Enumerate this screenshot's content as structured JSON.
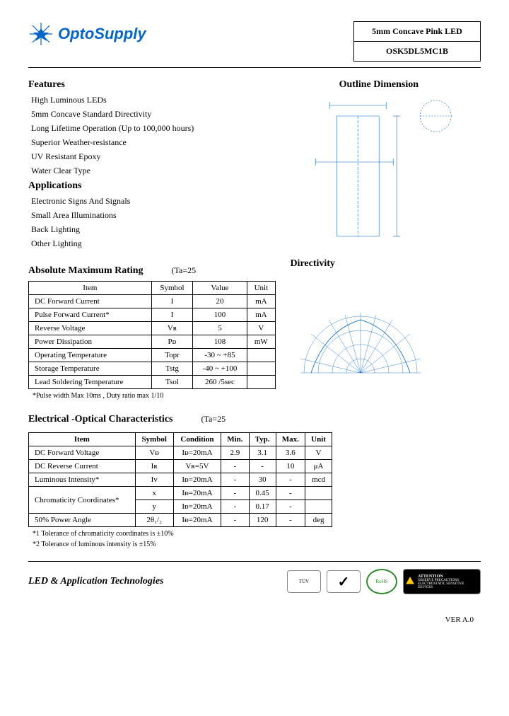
{
  "header": {
    "brand": "OptoSupply",
    "product_title": "5mm Concave Pink LED",
    "part_number": "OSK5DL5MC1B"
  },
  "features": {
    "title": "Features",
    "items": [
      "High Luminous LEDs",
      "5mm Concave Standard Directivity",
      "Long Lifetime Operation (Up to 100,000 hours)",
      "Superior Weather-resistance",
      "UV Resistant Epoxy",
      "Water Clear Type"
    ]
  },
  "applications": {
    "title": "Applications",
    "items": [
      "Electronic Signs And Signals",
      "Small Area Illuminations",
      "Back Lighting",
      "Other Lighting"
    ]
  },
  "outline": {
    "title": "Outline Dimension"
  },
  "abs_max": {
    "title": "Absolute Maximum Rating",
    "ta": "(Ta=25",
    "headers": [
      "Item",
      "Symbol",
      "Value",
      "Unit"
    ],
    "rows": [
      [
        "DC Forward Current",
        "I",
        "20",
        "mA"
      ],
      [
        "Pulse Forward Current*",
        "I",
        "100",
        "mA"
      ],
      [
        "Reverse Voltage",
        "Vʀ",
        "5",
        "V"
      ],
      [
        "Power Dissipation",
        "Pᴅ",
        "108",
        "mW"
      ],
      [
        "Operating Temperature",
        "Topr",
        "-30 ~ +85",
        ""
      ],
      [
        "Storage Temperature",
        "Tstg",
        "-40 ~ +100",
        ""
      ],
      [
        "Lead Soldering Temperature",
        "Tsol",
        "260   /5sec",
        ""
      ]
    ],
    "note": "*Pulse width Max 10ms , Duty ratio max 1/10"
  },
  "directivity": {
    "title": "Directivity"
  },
  "eo": {
    "title": "Electrical -Optical Characteristics",
    "ta": "(Ta=25",
    "headers": [
      "Item",
      "Symbol",
      "Condition",
      "Min.",
      "Typ.",
      "Max.",
      "Unit"
    ],
    "rows": [
      [
        "DC Forward Voltage",
        "Vᴆ",
        "Iᴆ=20mA",
        "2.9",
        "3.1",
        "3.6",
        "V"
      ],
      [
        "DC Reverse Current",
        "Iʀ",
        "Vʀ=5V",
        "-",
        "-",
        "10",
        "μA"
      ],
      [
        "Luminous Intensity*",
        "Iv",
        "Iᴆ=20mA",
        "-",
        "30",
        "-",
        "mcd"
      ],
      [
        "Chromaticity Coordinates*",
        "x",
        "Iᴆ=20mA",
        "-",
        "0.45",
        "-",
        ""
      ],
      [
        "",
        "y",
        "Iᴆ=20mA",
        "-",
        "0.17",
        "-",
        ""
      ],
      [
        "50% Power Angle",
        "2θ₁/₂",
        "Iᴆ=20mA",
        "-",
        "120",
        "-",
        "deg"
      ]
    ],
    "notes": [
      "*1 Tolerance of chromaticity coordinates is ±10%",
      "*2 Tolerance of luminous intensity is ±15%"
    ]
  },
  "footer": {
    "tagline": "LED & Application Technologies",
    "version": "VER A.0",
    "certs": {
      "tuv": "TÜV",
      "check": "✓",
      "rohs": "RoHS",
      "esd_title": "ATTENTION",
      "esd_sub": "OBSERVE PRECAUTIONS ELECTROSTATIC SENSITIVE DEVICES"
    }
  },
  "colors": {
    "brand": "#0066cc",
    "rohs": "#2a8a2a"
  }
}
